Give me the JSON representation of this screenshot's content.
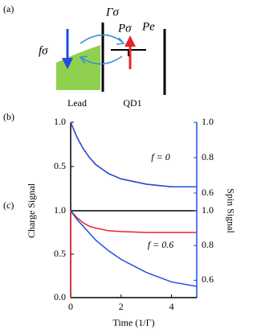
{
  "diagram": {
    "panel_label": "(a)",
    "barrier_label": "Γσ",
    "p_sigma_label": "Pσ",
    "p_e_label": "Pe",
    "f_sigma_label": "fσ",
    "lead_label": "Lead",
    "dot_label": "QD1"
  },
  "chart_data": [
    {
      "type": "line",
      "panel_label": "(b)",
      "annotation": "f = 0",
      "xlim": [
        0,
        5
      ],
      "ylim": [
        0,
        1
      ],
      "y2lim": [
        0.5,
        1
      ],
      "yticks": [
        0.5,
        {
          "value": 1,
          "label": "1.0"
        }
      ],
      "y2ticks": [
        0.6,
        0.8,
        {
          "value": 1,
          "label": "1.0"
        }
      ],
      "series": [
        {
          "color": "#e8242b",
          "x": [
            0,
            0.25,
            0.5,
            0.75,
            1,
            1.5,
            2,
            3,
            4,
            5
          ],
          "values": [
            1,
            0.83,
            0.7,
            0.6,
            0.52,
            0.42,
            0.36,
            0.3,
            0.27,
            0.27
          ]
        },
        {
          "color": "#1f4fe0",
          "axis": "y2",
          "x": [
            0,
            0.25,
            0.5,
            0.75,
            1,
            1.5,
            2,
            3,
            4,
            5
          ],
          "values": [
            1,
            0.915,
            0.85,
            0.8,
            0.76,
            0.71,
            0.68,
            0.65,
            0.635,
            0.635
          ]
        }
      ]
    },
    {
      "type": "line",
      "panel_label": "(c)",
      "annotation": "f = 0.6",
      "xlabel": "Time (1/Γ)",
      "ylabel": "Charge Signal",
      "y2label": "Spin Signal",
      "xlim": [
        0,
        5
      ],
      "xticks": [
        0,
        2,
        4
      ],
      "ylim": [
        0,
        1
      ],
      "y2lim": [
        0.5,
        1
      ],
      "yticks": [
        {
          "value": 0,
          "label": "0.0"
        },
        0.5,
        {
          "value": 1,
          "label": "1.0"
        }
      ],
      "y2ticks": [
        0.6,
        0.8,
        {
          "value": 1,
          "label": "1.0"
        }
      ],
      "series": [
        {
          "color": "#e8242b",
          "x": [
            0,
            0,
            0.25,
            0.5,
            0.75,
            1,
            1.5,
            2,
            3,
            4,
            5
          ],
          "values": [
            0,
            1,
            0.92,
            0.86,
            0.82,
            0.8,
            0.77,
            0.76,
            0.75,
            0.75,
            0.75
          ]
        },
        {
          "color": "#1f4fe0",
          "axis": "y2",
          "x": [
            0,
            0.25,
            0.5,
            0.75,
            1,
            1.5,
            2,
            3,
            4,
            5
          ],
          "values": [
            1,
            0.95,
            0.91,
            0.87,
            0.83,
            0.77,
            0.72,
            0.645,
            0.59,
            0.565
          ]
        }
      ]
    }
  ]
}
